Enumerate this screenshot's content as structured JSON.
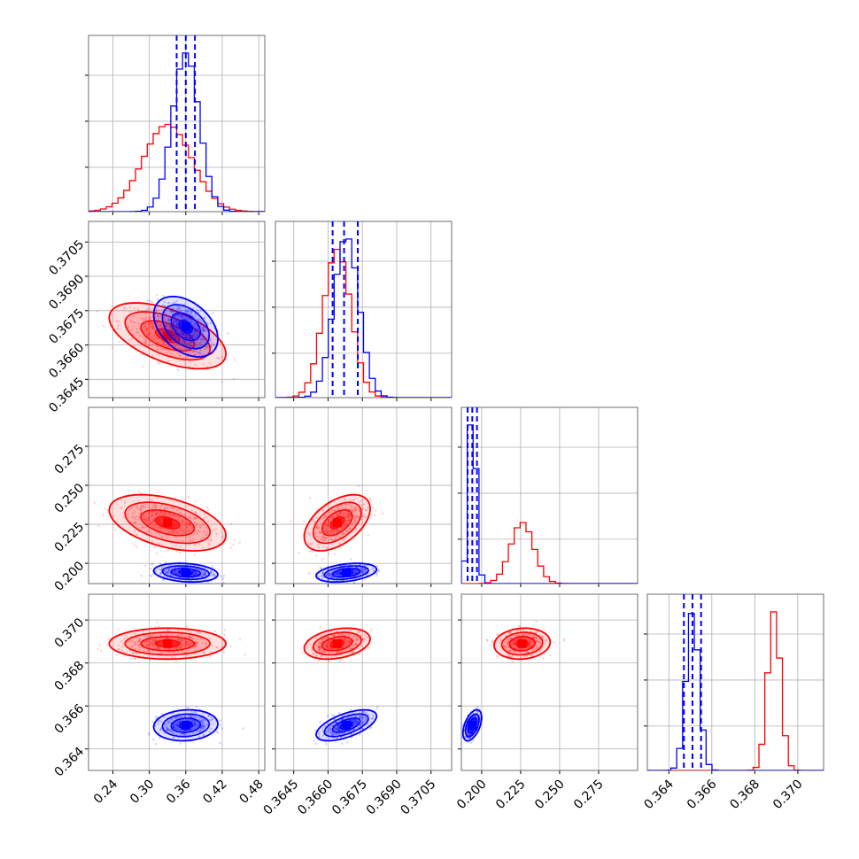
{
  "chart_data": {
    "type": "corner",
    "title": "",
    "series_colors": {
      "first": "#ff0000",
      "second": "#0000ff"
    },
    "grid": true,
    "parameters": [
      {
        "range": [
          0.2,
          0.49
        ],
        "ticks": [
          0.24,
          0.3,
          0.36,
          0.42,
          0.48
        ],
        "tick_labels": [
          "0.24",
          "0.30",
          "0.36",
          "0.42",
          "0.48"
        ],
        "mean": [
          0.33,
          0.36
        ],
        "sd": [
          0.04,
          0.022
        ],
        "quantiles_second": [
          0.345,
          0.36,
          0.375
        ]
      },
      {
        "range": [
          0.3637,
          0.3714
        ],
        "ticks": [
          0.3645,
          0.366,
          0.3675,
          0.369,
          0.3705
        ],
        "tick_labels": [
          "0.3645",
          "0.3660",
          "0.3675",
          "0.3690",
          "0.3705"
        ],
        "mean": [
          0.3664,
          0.3668
        ],
        "sd": [
          0.0006,
          0.00055
        ],
        "quantiles_second": [
          0.3662,
          0.3667,
          0.3673
        ]
      },
      {
        "range": [
          0.187,
          0.3
        ],
        "ticks": [
          0.2,
          0.225,
          0.25,
          0.275
        ],
        "tick_labels": [
          "0.200",
          "0.225",
          "0.250",
          "0.275"
        ],
        "mean": [
          0.226,
          0.194
        ],
        "sd": [
          0.0075,
          0.0025
        ],
        "quantiles_second": [
          0.191,
          0.194,
          0.197
        ]
      },
      {
        "range": [
          0.363,
          0.3712
        ],
        "ticks": [
          0.364,
          0.366,
          0.368,
          0.37
        ],
        "tick_labels": [
          "0.364",
          "0.366",
          "0.368",
          "0.370"
        ],
        "mean": [
          0.3689,
          0.3651
        ],
        "sd": [
          0.0003,
          0.0003
        ],
        "quantiles_second": [
          0.3647,
          0.3651,
          0.3655
        ]
      }
    ],
    "correlations": [
      {
        "pair": [
          1,
          0
        ],
        "rho": [
          -0.55,
          -0.4
        ]
      },
      {
        "pair": [
          2,
          0
        ],
        "rho": [
          -0.45,
          -0.2
        ]
      },
      {
        "pair": [
          2,
          1
        ],
        "rho": [
          0.5,
          0.35
        ]
      },
      {
        "pair": [
          3,
          0
        ],
        "rho": [
          0.0,
          0.1
        ]
      },
      {
        "pair": [
          3,
          1
        ],
        "rho": [
          0.3,
          0.6
        ]
      },
      {
        "pair": [
          3,
          2
        ],
        "rho": [
          0.1,
          0.5
        ]
      }
    ]
  }
}
